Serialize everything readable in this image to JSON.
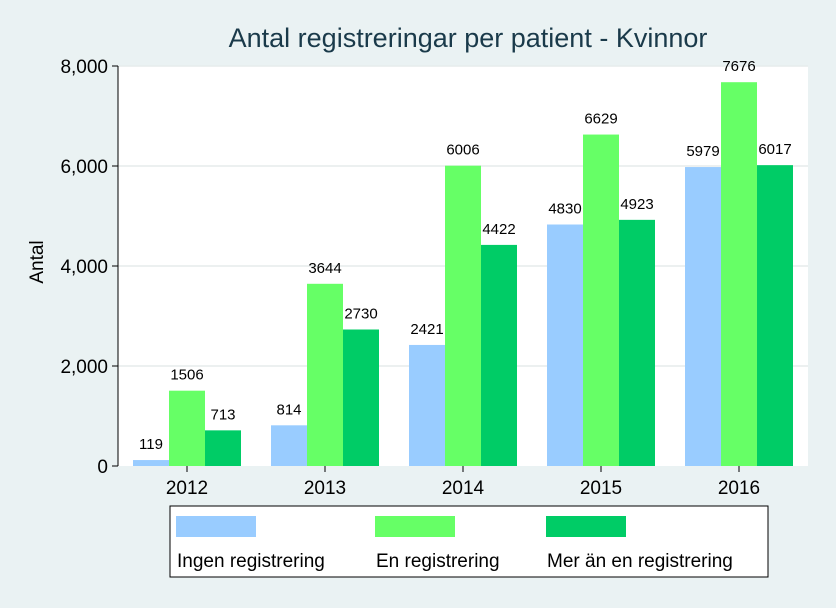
{
  "chart_data": {
    "type": "bar",
    "title": "Antal registreringar per patient - Kvinnor",
    "xlabel": "",
    "ylabel": "Antal",
    "categories": [
      "2012",
      "2013",
      "2014",
      "2015",
      "2016"
    ],
    "series": [
      {
        "name": "Ingen registrering",
        "color": "#99ccff",
        "values": [
          119,
          814,
          2421,
          4830,
          5979
        ]
      },
      {
        "name": "En registrering",
        "color": "#66ff66",
        "values": [
          1506,
          3644,
          6006,
          6629,
          7676
        ]
      },
      {
        "name": "Mer än en registrering",
        "color": "#00cc66",
        "values": [
          713,
          2730,
          4422,
          4923,
          6017
        ]
      }
    ],
    "ylim": [
      0,
      8000
    ],
    "yticks": [
      0,
      2000,
      4000,
      6000,
      8000
    ],
    "ytick_labels": [
      "0",
      "2,000",
      "4,000",
      "6,000",
      "8,000"
    ],
    "grid": true,
    "legend_position": "bottom",
    "plot_background": "#ffffff",
    "figure_background": "#eaf2f3"
  }
}
